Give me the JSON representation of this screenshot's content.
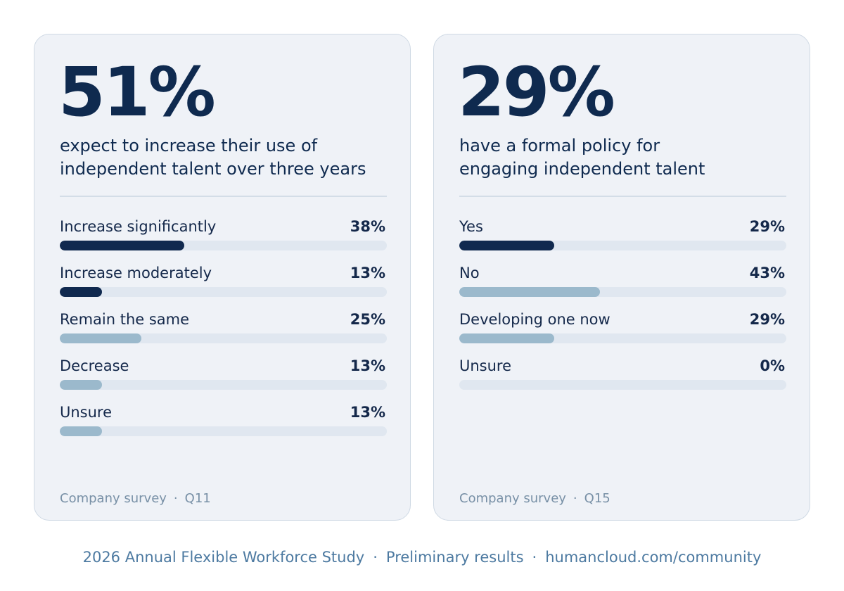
{
  "chart_data": [
    {
      "type": "bar",
      "headline": "51%",
      "subtitle_lines": [
        "expect to increase their use of",
        "independent talent over three years"
      ],
      "categories": [
        "Increase significantly",
        "Increase moderately",
        "Remain the same",
        "Decrease",
        "Unsure"
      ],
      "values": [
        38,
        13,
        25,
        13,
        13
      ],
      "value_labels": [
        "38%",
        "13%",
        "25%",
        "13%",
        "13%"
      ],
      "highlight": [
        true,
        true,
        false,
        false,
        false
      ],
      "ylim": [
        0,
        100
      ],
      "source_label": "Company survey",
      "source_separator": "·",
      "source_question": "Q11"
    },
    {
      "type": "bar",
      "headline": "29%",
      "subtitle_lines": [
        "have a formal policy for",
        "engaging independent talent"
      ],
      "categories": [
        "Yes",
        "No",
        "Developing one now",
        "Unsure"
      ],
      "values": [
        29,
        43,
        29,
        0
      ],
      "value_labels": [
        "29%",
        "43%",
        "29%",
        "0%"
      ],
      "highlight": [
        true,
        false,
        false,
        false
      ],
      "ylim": [
        0,
        100
      ],
      "source_label": "Company survey",
      "source_separator": "·",
      "source_question": "Q15"
    }
  ],
  "footer": {
    "study": "2026 Annual Flexible Workforce Study",
    "separator": "·",
    "status": "Preliminary results",
    "url": "humancloud.com/community"
  },
  "colors": {
    "highlight_bar": "#10294f",
    "muted_bar": "#9bb9cc",
    "track": "#e0e7f0",
    "text": "#14284a",
    "footer_text": "#4d7aa1"
  }
}
